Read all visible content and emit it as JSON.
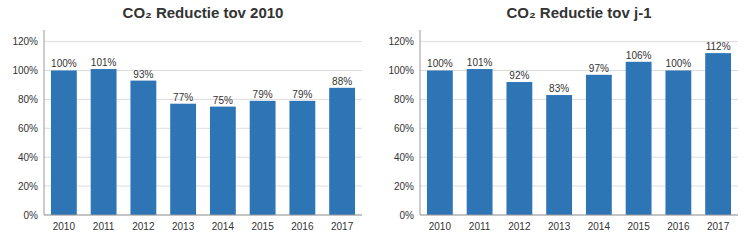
{
  "chart_data": [
    {
      "type": "bar",
      "title": "CO₂ Reductie tov 2010",
      "categories": [
        "2010",
        "2011",
        "2012",
        "2013",
        "2014",
        "2015",
        "2016",
        "2017"
      ],
      "values": [
        1.0,
        1.01,
        0.93,
        0.77,
        0.75,
        0.79,
        0.79,
        0.88
      ],
      "value_labels": [
        "100%",
        "101%",
        "93%",
        "77%",
        "75%",
        "79%",
        "79%",
        "88%"
      ],
      "color": "#2E75B6",
      "ylim": [
        0,
        1.28
      ],
      "yticks": [
        {
          "value": 0.0,
          "label": "0%"
        },
        {
          "value": 0.2,
          "label": "20%"
        },
        {
          "value": 0.4,
          "label": "40%"
        },
        {
          "value": 0.6,
          "label": "60%"
        },
        {
          "value": 0.8,
          "label": "80%"
        },
        {
          "value": 1.0,
          "label": "100%"
        },
        {
          "value": 1.2,
          "label": "120%"
        }
      ],
      "grid": true,
      "data_labels": true
    },
    {
      "type": "bar",
      "title": "CO₂ Reductie tov j-1",
      "categories": [
        "2010",
        "2011",
        "2012",
        "2013",
        "2014",
        "2015",
        "2016",
        "2017"
      ],
      "values": [
        1.0,
        1.01,
        0.92,
        0.83,
        0.97,
        1.06,
        1.0,
        1.12
      ],
      "value_labels": [
        "100%",
        "101%",
        "92%",
        "83%",
        "97%",
        "106%",
        "100%",
        "112%"
      ],
      "color": "#2E75B6",
      "ylim": [
        0,
        1.28
      ],
      "yticks": [
        {
          "value": 0.0,
          "label": "0%"
        },
        {
          "value": 0.2,
          "label": "20%"
        },
        {
          "value": 0.4,
          "label": "40%"
        },
        {
          "value": 0.6,
          "label": "60%"
        },
        {
          "value": 0.8,
          "label": "80%"
        },
        {
          "value": 1.0,
          "label": "100%"
        },
        {
          "value": 1.2,
          "label": "120%"
        }
      ],
      "grid": true,
      "data_labels": true
    }
  ]
}
